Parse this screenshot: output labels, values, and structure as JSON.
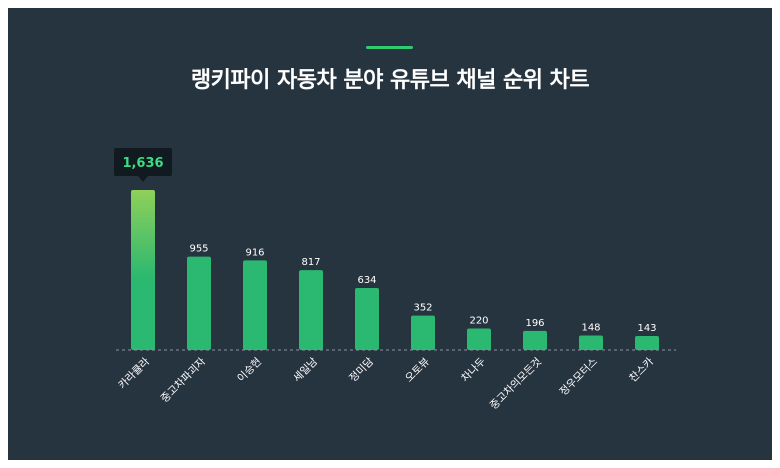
{
  "title": "랭키파이 자동차 분야 유튜브 채널 순위 차트",
  "colors": {
    "background": "#263440",
    "bar": "#2bb870",
    "bar_highlight_top": "#8fd05a",
    "accent": "#2ecc71",
    "tooltip_bg": "#111a20",
    "tooltip_text": "#3ddc84",
    "baseline": "#8a949c"
  },
  "chart_data": {
    "type": "bar",
    "categories": [
      "카라큘라",
      "중고차파괴자",
      "이승현",
      "세일남",
      "정미담",
      "오토뷰",
      "차나두",
      "중고차의모든것",
      "정우모터스",
      "찬스카"
    ],
    "values": [
      1636,
      955,
      916,
      817,
      634,
      352,
      220,
      196,
      148,
      143
    ],
    "value_labels": [
      "1,636",
      "955",
      "916",
      "817",
      "634",
      "352",
      "220",
      "196",
      "148",
      "143"
    ],
    "highlight_index": 0,
    "ylim": [
      0,
      1636
    ],
    "grid": false
  }
}
